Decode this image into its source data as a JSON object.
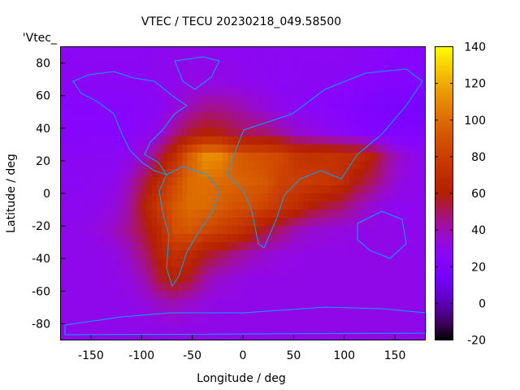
{
  "chart_data": {
    "type": "heatmap",
    "title": "VTEC / TECU 20230218_049.58500",
    "xlabel": "Longitude / deg",
    "ylabel": "Latitude / deg",
    "key_label": "'Vtec_",
    "xlim": [
      -180,
      180
    ],
    "ylim": [
      -90,
      90
    ],
    "xticks": [
      -150,
      -100,
      -50,
      0,
      50,
      100,
      150
    ],
    "yticks": [
      80,
      60,
      40,
      20,
      0,
      -20,
      -40,
      -60,
      -80
    ],
    "colorbar": {
      "range": [
        -20,
        140
      ],
      "ticks": [
        140,
        120,
        100,
        80,
        60,
        40,
        20,
        0,
        -20
      ]
    },
    "grid_lon_centers": [
      -172.5,
      -157.5,
      -142.5,
      -127.5,
      -112.5,
      -97.5,
      -82.5,
      -67.5,
      -52.5,
      -37.5,
      -22.5,
      -7.5,
      7.5,
      22.5,
      37.5,
      52.5,
      67.5,
      82.5,
      97.5,
      112.5,
      127.5,
      142.5,
      157.5,
      172.5
    ],
    "grid_lat_centers": [
      82.5,
      67.5,
      52.5,
      37.5,
      22.5,
      7.5,
      -7.5,
      -22.5,
      -37.5,
      -52.5,
      -67.5,
      -82.5
    ],
    "values": [
      [
        28,
        28,
        28,
        28,
        28,
        28,
        29,
        30,
        30,
        30,
        30,
        29,
        29,
        28,
        28,
        28,
        28,
        28,
        28,
        27,
        26,
        25,
        24,
        24
      ],
      [
        27,
        27,
        27,
        27,
        27,
        28,
        29,
        30,
        32,
        32,
        32,
        31,
        30,
        29,
        28,
        28,
        27,
        27,
        26,
        25,
        24,
        23,
        22,
        22
      ],
      [
        25,
        25,
        25,
        25,
        25,
        26,
        28,
        33,
        40,
        45,
        45,
        42,
        38,
        34,
        30,
        28,
        26,
        25,
        23,
        21,
        19,
        18,
        17,
        17
      ],
      [
        24,
        24,
        24,
        24,
        25,
        27,
        33,
        45,
        55,
        60,
        58,
        52,
        50,
        48,
        42,
        36,
        33,
        30,
        27,
        24,
        22,
        21,
        20,
        20
      ],
      [
        27,
        27,
        28,
        28,
        30,
        38,
        52,
        70,
        95,
        112,
        110,
        95,
        90,
        88,
        85,
        75,
        73,
        74,
        72,
        70,
        60,
        45,
        35,
        30
      ],
      [
        28,
        28,
        29,
        30,
        38,
        52,
        68,
        85,
        100,
        102,
        100,
        97,
        95,
        92,
        82,
        80,
        78,
        76,
        70,
        58,
        50,
        40,
        32,
        30
      ],
      [
        29,
        29,
        30,
        33,
        42,
        60,
        78,
        92,
        100,
        100,
        95,
        90,
        88,
        82,
        75,
        70,
        60,
        55,
        50,
        42,
        35,
        30,
        29,
        29
      ],
      [
        30,
        30,
        33,
        38,
        45,
        55,
        68,
        88,
        92,
        85,
        80,
        75,
        65,
        55,
        48,
        40,
        36,
        34,
        33,
        32,
        31,
        31,
        30,
        30
      ],
      [
        30,
        30,
        30,
        32,
        38,
        48,
        62,
        72,
        68,
        58,
        52,
        45,
        40,
        36,
        33,
        32,
        31,
        31,
        31,
        31,
        31,
        31,
        30,
        30
      ],
      [
        30,
        30,
        30,
        31,
        33,
        40,
        55,
        62,
        55,
        42,
        36,
        33,
        31,
        31,
        31,
        31,
        31,
        31,
        31,
        31,
        31,
        31,
        31,
        30
      ],
      [
        30,
        30,
        30,
        30,
        31,
        33,
        38,
        40,
        36,
        33,
        31,
        31,
        31,
        31,
        31,
        31,
        31,
        31,
        31,
        31,
        31,
        31,
        31,
        30
      ],
      [
        30,
        30,
        30,
        30,
        30,
        31,
        31,
        32,
        31,
        31,
        31,
        31,
        31,
        31,
        31,
        31,
        31,
        31,
        31,
        31,
        31,
        31,
        31,
        30
      ]
    ]
  }
}
